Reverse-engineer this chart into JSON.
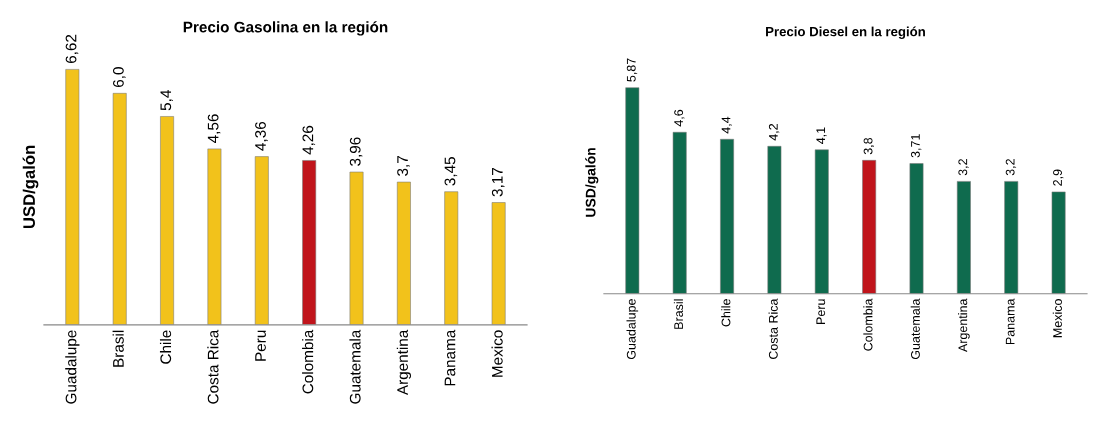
{
  "chart_data": [
    {
      "type": "bar",
      "title": "Precio Gasolina en la región",
      "ylabel": "USD/galón",
      "categories": [
        "Guadalupe",
        "Brasil",
        "Chile",
        "Costa Rica",
        "Peru",
        "Colombia",
        "Guatemala",
        "Argentina",
        "Panama",
        "Mexico"
      ],
      "values": [
        6.62,
        6.0,
        5.4,
        4.56,
        4.36,
        4.26,
        3.96,
        3.7,
        3.45,
        3.17
      ],
      "value_labels": [
        "6,62",
        "6,0",
        "5,4",
        "4,56",
        "4,36",
        "4,26",
        "3,96",
        "3,7",
        "3,45",
        "3,17"
      ],
      "colors": [
        "#f2c21b",
        "#f2c21b",
        "#f2c21b",
        "#f2c21b",
        "#f2c21b",
        "#c0141b",
        "#f2c21b",
        "#f2c21b",
        "#f2c21b",
        "#f2c21b"
      ],
      "grid": false,
      "legend": false
    },
    {
      "type": "bar",
      "title": "Precio Diesel en la región",
      "ylabel": "USD/galón",
      "categories": [
        "Guadalupe",
        "Brasil",
        "Chile",
        "Costa Rica",
        "Peru",
        "Colombia",
        "Guatemala",
        "Argentina",
        "Panama",
        "Mexico"
      ],
      "values": [
        5.87,
        4.6,
        4.4,
        4.2,
        4.1,
        3.8,
        3.71,
        3.2,
        3.2,
        2.9
      ],
      "value_labels": [
        "5,87",
        "4,6",
        "4,4",
        "4,2",
        "4,1",
        "3,8",
        "3,71",
        "3,2",
        "3,2",
        "2,9"
      ],
      "colors": [
        "#0f6b4e",
        "#0f6b4e",
        "#0f6b4e",
        "#0f6b4e",
        "#0f6b4e",
        "#c0141b",
        "#0f6b4e",
        "#0f6b4e",
        "#0f6b4e",
        "#0f6b4e"
      ],
      "grid": false,
      "legend": false
    }
  ]
}
